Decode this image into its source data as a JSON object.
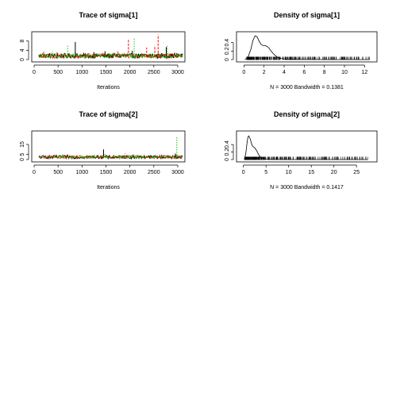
{
  "chart_data": [
    {
      "type": "line",
      "title": "Trace of sigma[1]",
      "xlabel": "Iterations",
      "ylabel": "",
      "xlim": [
        0,
        3100
      ],
      "ylim": [
        0,
        11
      ],
      "xticks": [
        0,
        500,
        1000,
        1500,
        2000,
        2500,
        3000
      ],
      "yticks": [
        0,
        4,
        8
      ],
      "n_chains": 3,
      "chain_colors": [
        "#000000",
        "#ff0000",
        "#00cd00"
      ],
      "chain_spikes": [
        [
          [
            860,
            7.6
          ],
          [
            1480,
            3.6
          ],
          [
            2050,
            3.8
          ],
          [
            2760,
            5.4
          ],
          [
            480,
            3.0
          ],
          [
            1250,
            3.2
          ]
        ],
        [
          [
            1970,
            9.0
          ],
          [
            2590,
            10.8
          ],
          [
            2520,
            6.0
          ],
          [
            2350,
            5.2
          ],
          [
            1750,
            3.5
          ],
          [
            200,
            3.4
          ]
        ],
        [
          [
            700,
            6.0
          ],
          [
            2090,
            9.4
          ],
          [
            2780,
            6.2
          ],
          [
            380,
            3.6
          ],
          [
            1560,
            3.4
          ],
          [
            2970,
            3.2
          ]
        ]
      ],
      "baseline": 1.3
    },
    {
      "type": "area",
      "title": "Density of sigma[1]",
      "xlabel": "N = 3000   Bandwidth = 0.1381",
      "ylabel": "",
      "xlim": [
        -0.5,
        13
      ],
      "ylim": [
        0,
        0.6
      ],
      "xticks": [
        0,
        2,
        4,
        6,
        8,
        10,
        12
      ],
      "yticks": [
        0,
        0.2,
        0.4
      ],
      "x": [
        0.1,
        0.4,
        0.7,
        0.9,
        1.1,
        1.3,
        1.5,
        1.7,
        1.9,
        2.1,
        2.3,
        2.5,
        2.7,
        3.0,
        3.3,
        3.6,
        4.0,
        4.5,
        5.0,
        6.0,
        7.0,
        8.0,
        10.0,
        12.5
      ],
      "y": [
        0.0,
        0.05,
        0.25,
        0.45,
        0.56,
        0.54,
        0.44,
        0.36,
        0.33,
        0.33,
        0.31,
        0.27,
        0.2,
        0.12,
        0.06,
        0.03,
        0.012,
        0.006,
        0.004,
        0.002,
        0.001,
        0.0005,
        0.0003,
        0.0
      ],
      "rug_range": [
        0.3,
        12.5
      ]
    },
    {
      "type": "line",
      "title": "Trace of sigma[2]",
      "xlabel": "Iterations",
      "ylabel": "",
      "xlim": [
        0,
        3100
      ],
      "ylim": [
        0,
        26
      ],
      "xticks": [
        0,
        500,
        1000,
        1500,
        2000,
        2500,
        3000
      ],
      "yticks": [
        0,
        5,
        15
      ],
      "n_chains": 3,
      "chain_colors": [
        "#000000",
        "#ff0000",
        "#00cd00"
      ],
      "chain_spikes": [
        [
          [
            1450,
            10.0
          ],
          [
            2950,
            6.0
          ],
          [
            700,
            5.0
          ],
          [
            2300,
            4.5
          ]
        ],
        [
          [
            1900,
            6.0
          ],
          [
            1100,
            4.5
          ],
          [
            2700,
            5.0
          ],
          [
            400,
            4.0
          ]
        ],
        [
          [
            2980,
            23.0
          ],
          [
            1480,
            6.5
          ],
          [
            600,
            5.0
          ],
          [
            2100,
            4.5
          ]
        ]
      ],
      "baseline": 2.0
    },
    {
      "type": "area",
      "title": "Density of sigma[2]",
      "xlabel": "N = 3000   Bandwidth = 0.1417",
      "ylabel": "",
      "xlim": [
        -1,
        29
      ],
      "ylim": [
        0,
        0.7
      ],
      "xticks": [
        0,
        5,
        10,
        15,
        20,
        25
      ],
      "yticks": [
        0,
        0.2,
        0.4
      ],
      "x": [
        0.2,
        0.5,
        0.8,
        1.0,
        1.2,
        1.5,
        1.8,
        2.0,
        2.3,
        2.6,
        3.0,
        3.4,
        3.8,
        4.3,
        5.0,
        6.0,
        8.0,
        10.0,
        15.0,
        20.0,
        27.5
      ],
      "y": [
        0.0,
        0.15,
        0.45,
        0.6,
        0.63,
        0.55,
        0.42,
        0.36,
        0.33,
        0.3,
        0.22,
        0.12,
        0.06,
        0.025,
        0.01,
        0.004,
        0.002,
        0.001,
        0.0005,
        0.0003,
        0.0
      ],
      "rug_range": [
        0.3,
        27.5
      ]
    }
  ]
}
